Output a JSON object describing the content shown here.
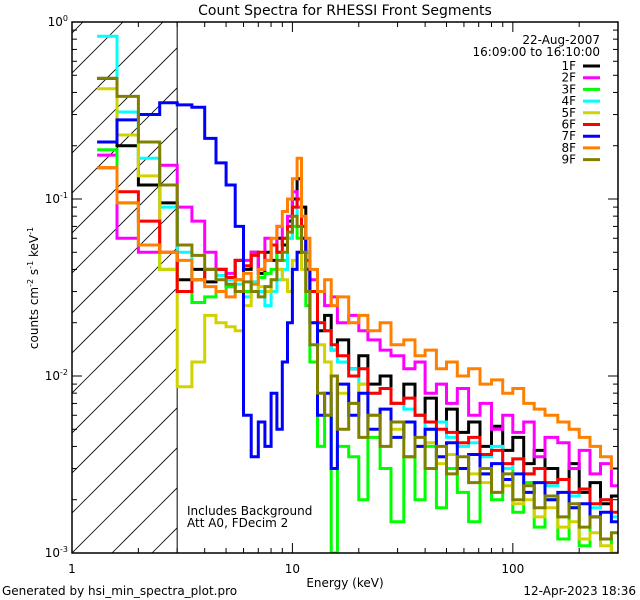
{
  "chart_data": {
    "type": "line",
    "title": "Count Spectra for RHESSI Front Segments",
    "xlabel": "Energy (keV)",
    "ylabel": {
      "base": "counts cm",
      "e1": "-2",
      "mid1": " s",
      "e2": "-1",
      "mid2": " keV",
      "e3": "-1"
    },
    "xscale": "log",
    "yscale": "log",
    "xlim": [
      1,
      300
    ],
    "ylim": [
      0.001,
      1
    ],
    "xticks": [
      {
        "value": 1,
        "label": "1"
      },
      {
        "value": 10,
        "label": "10"
      },
      {
        "value": 100,
        "label": "100"
      }
    ],
    "yticks": [
      {
        "value": 1,
        "base": "10",
        "exp": "0"
      },
      {
        "value": 0.1,
        "base": "10",
        "exp": "-1"
      },
      {
        "value": 0.01,
        "base": "10",
        "exp": "-2"
      },
      {
        "value": 0.001,
        "base": "10",
        "exp": "-3"
      }
    ],
    "shaded_region_keV": [
      1,
      3
    ],
    "legend": {
      "placement": "top-right",
      "date": "22-Aug-2007",
      "time_range": "16:09:00 to 16:10:00"
    },
    "annotations": [
      "Includes Background",
      "Att A0, FDecim 2"
    ],
    "energy_edges": [
      1.3,
      1.6,
      2.0,
      2.5,
      3.0,
      3.5,
      4.0,
      4.5,
      5.0,
      5.5,
      6.0,
      6.5,
      7.0,
      7.5,
      8.0,
      8.5,
      9.0,
      9.5,
      10.0,
      10.5,
      11.0,
      11.5,
      12.0,
      13,
      14,
      15,
      16,
      18,
      20,
      22,
      25,
      28,
      32,
      36,
      40,
      45,
      50,
      56,
      63,
      71,
      80,
      90,
      100,
      112,
      125,
      140,
      160,
      180,
      200,
      224,
      250,
      280,
      300
    ],
    "series": [
      {
        "name": "1F",
        "color": "#000000",
        "values": [
          0.48,
          0.2,
          0.12,
          0.095,
          0.035,
          0.04,
          0.034,
          0.04,
          0.032,
          0.045,
          0.04,
          0.05,
          0.038,
          0.05,
          0.045,
          0.06,
          0.055,
          0.075,
          0.1,
          0.13,
          0.09,
          0.05,
          0.03,
          0.018,
          0.022,
          0.014,
          0.016,
          0.011,
          0.013,
          0.009,
          0.01,
          0.007,
          0.009,
          0.006,
          0.0075,
          0.0055,
          0.0065,
          0.0048,
          0.0055,
          0.004,
          0.0052,
          0.0038,
          0.0045,
          0.0032,
          0.0038,
          0.003,
          0.0026,
          0.0032,
          0.0022,
          0.0025,
          0.0019,
          0.0021
        ]
      },
      {
        "name": "2F",
        "color": "#ff00ff",
        "values": [
          0.177,
          0.06,
          0.05,
          0.155,
          0.09,
          0.075,
          0.05,
          0.04,
          0.038,
          0.035,
          0.045,
          0.05,
          0.04,
          0.06,
          0.055,
          0.07,
          0.06,
          0.08,
          0.11,
          0.09,
          0.06,
          0.04,
          0.035,
          0.03,
          0.025,
          0.028,
          0.02,
          0.022,
          0.018,
          0.016,
          0.014,
          0.013,
          0.011,
          0.012,
          0.008,
          0.009,
          0.007,
          0.0085,
          0.006,
          0.007,
          0.005,
          0.006,
          0.0048,
          0.0055,
          0.0035,
          0.0045,
          0.0042,
          0.003,
          0.0038,
          0.0028,
          0.0032,
          0.0024
        ]
      },
      {
        "name": "3F",
        "color": "#00ff00",
        "values": [
          0.19,
          0.095,
          0.055,
          0.04,
          0.03,
          0.026,
          0.028,
          0.03,
          0.032,
          0.035,
          0.03,
          0.034,
          0.036,
          0.038,
          0.04,
          0.05,
          0.045,
          0.06,
          0.07,
          0.06,
          0.05,
          0.025,
          0.012,
          0.004,
          0.006,
          0.001,
          0.004,
          0.0035,
          0.002,
          0.0045,
          0.003,
          0.0015,
          0.0035,
          0.002,
          0.004,
          0.0018,
          0.003,
          0.0022,
          0.0015,
          0.0028,
          0.002,
          0.003,
          0.0017,
          0.0025,
          0.0014,
          0.002,
          0.0012,
          0.0018,
          0.0011,
          0.0016,
          0.0012,
          0.001
        ]
      },
      {
        "name": "4F",
        "color": "#00ffff",
        "values": [
          0.83,
          0.31,
          0.17,
          0.09,
          0.05,
          0.035,
          0.04,
          0.037,
          0.035,
          0.033,
          0.028,
          0.034,
          0.03,
          0.025,
          0.03,
          0.035,
          0.04,
          0.06,
          0.08,
          0.1,
          0.07,
          0.05,
          0.03,
          0.02,
          0.018,
          0.014,
          0.012,
          0.011,
          0.009,
          0.008,
          0.0085,
          0.007,
          0.0065,
          0.006,
          0.005,
          0.0055,
          0.0045,
          0.004,
          0.0042,
          0.0035,
          0.004,
          0.003,
          0.0034,
          0.0028,
          0.003,
          0.0024,
          0.0026,
          0.0021,
          0.0023,
          0.0018,
          0.002,
          0.0016
        ]
      },
      {
        "name": "5F",
        "color": "#d2d200",
        "values": [
          0.42,
          0.23,
          0.135,
          0.04,
          0.0087,
          0.012,
          0.022,
          0.02,
          0.019,
          0.018,
          0.025,
          0.03,
          0.032,
          0.03,
          0.035,
          0.04,
          0.035,
          0.03,
          0.045,
          0.05,
          0.04,
          0.03,
          0.02,
          0.015,
          0.012,
          0.01,
          0.008,
          0.007,
          0.009,
          0.006,
          0.0065,
          0.005,
          0.0055,
          0.004,
          0.0042,
          0.0032,
          0.0036,
          0.003,
          0.0028,
          0.0025,
          0.0022,
          0.0024,
          0.0019,
          0.002,
          0.0016,
          0.0018,
          0.0014,
          0.0015,
          0.0012,
          0.0013,
          0.0011,
          0.001
        ]
      },
      {
        "name": "6F",
        "color": "#ff0000",
        "values": [
          0.15,
          0.11,
          0.075,
          0.05,
          0.03,
          0.035,
          0.04,
          0.04,
          0.036,
          0.045,
          0.042,
          0.048,
          0.05,
          0.045,
          0.055,
          0.05,
          0.06,
          0.07,
          0.09,
          0.1,
          0.07,
          0.045,
          0.03,
          0.02,
          0.018,
          0.015,
          0.013,
          0.01,
          0.011,
          0.008,
          0.0085,
          0.007,
          0.0075,
          0.006,
          0.0055,
          0.005,
          0.0048,
          0.0042,
          0.0045,
          0.0036,
          0.0038,
          0.0032,
          0.0034,
          0.0028,
          0.003,
          0.0025,
          0.0026,
          0.0022,
          0.0023,
          0.0019,
          0.002,
          0.0017
        ]
      },
      {
        "name": "7F",
        "color": "#0000ff",
        "values": [
          0.21,
          0.28,
          0.3,
          0.35,
          0.34,
          0.33,
          0.22,
          0.16,
          0.12,
          0.07,
          0.006,
          0.0035,
          0.0055,
          0.004,
          0.008,
          0.005,
          0.012,
          0.02,
          0.04,
          0.05,
          0.06,
          0.04,
          0.02,
          0.006,
          0.008,
          0.003,
          0.009,
          0.006,
          0.008,
          0.005,
          0.0065,
          0.0045,
          0.0055,
          0.004,
          0.005,
          0.0035,
          0.0042,
          0.003,
          0.0036,
          0.0028,
          0.0032,
          0.0026,
          0.0028,
          0.0022,
          0.0025,
          0.002,
          0.0022,
          0.0018,
          0.0019,
          0.0016,
          0.0017,
          0.0015
        ]
      },
      {
        "name": "8F",
        "color": "#ff8000",
        "values": [
          0.15,
          0.095,
          0.055,
          0.05,
          0.045,
          0.035,
          0.032,
          0.03,
          0.028,
          0.035,
          0.038,
          0.033,
          0.04,
          0.045,
          0.06,
          0.07,
          0.085,
          0.1,
          0.13,
          0.17,
          0.08,
          0.06,
          0.04,
          0.03,
          0.035,
          0.025,
          0.028,
          0.02,
          0.022,
          0.018,
          0.02,
          0.015,
          0.016,
          0.013,
          0.014,
          0.011,
          0.012,
          0.01,
          0.011,
          0.009,
          0.0095,
          0.008,
          0.0085,
          0.007,
          0.0065,
          0.006,
          0.0055,
          0.005,
          0.0045,
          0.004,
          0.0035,
          0.003
        ]
      },
      {
        "name": "9F",
        "color": "#808000",
        "values": [
          0.48,
          0.38,
          0.21,
          0.12,
          0.055,
          0.048,
          0.04,
          0.035,
          0.033,
          0.03,
          0.034,
          0.03,
          0.028,
          0.032,
          0.035,
          0.045,
          0.05,
          0.065,
          0.08,
          0.07,
          0.05,
          0.03,
          0.015,
          0.008,
          0.006,
          0.01,
          0.005,
          0.007,
          0.0045,
          0.006,
          0.004,
          0.0055,
          0.0035,
          0.0045,
          0.003,
          0.004,
          0.0028,
          0.0035,
          0.0025,
          0.003,
          0.0022,
          0.0028,
          0.002,
          0.0024,
          0.0018,
          0.0021,
          0.0016,
          0.0019,
          0.0014,
          0.0016,
          0.0012,
          0.0013
        ]
      }
    ]
  },
  "footer": {
    "generator": "Generated by hsi_min_spectra_plot.pro",
    "timestamp": "12-Apr-2023 18:36"
  }
}
